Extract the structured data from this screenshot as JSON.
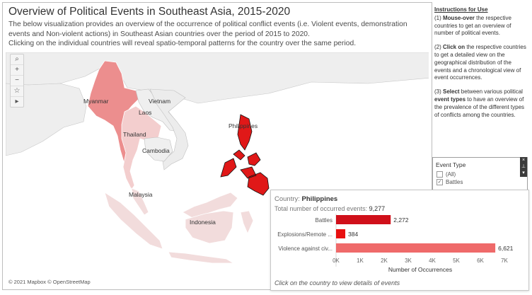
{
  "header": {
    "title": "Overview of Political Events in Southeast Asia, 2015-2020",
    "desc_line1": "The below visualization provides an overview of the occurrence of political conflict events (i.e. Violent events, demonstration",
    "desc_line2": "events and Non-violent actions) in Southeast Asian countries over the period of 2015 to 2020.",
    "desc_line3": "Clicking on the individual countries will reveal spatio-temporal patterns for the country  over the same period."
  },
  "map": {
    "labels": {
      "myanmar": "Myanmar",
      "laos": "Laos",
      "vietnam": "Vietnam",
      "thailand": "Thailand",
      "cambodia": "Cambodia",
      "philippines": "Philippines",
      "malaysia": "Malaysia",
      "indonesia": "Indonesia"
    },
    "tools": {
      "search": "⌕",
      "zoom_in": "+",
      "zoom_out": "−",
      "pin": "☆",
      "expand": "▸"
    },
    "attribution": "© 2021 Mapbox © OpenStreetMap"
  },
  "instructions": {
    "heading": "Instructions for Use",
    "step1_prefix": "(1) ",
    "step1_bold": "Mouse-over",
    "step1_rest": " the respective countries to get an overview of number of political events.",
    "step2_prefix": "(2) ",
    "step2_bold": "Click on",
    "step2_rest": " the respective countries to get a detailed view on the geographical distribution of the events and a chronological view of event occurrences.",
    "step3_prefix": "(3) ",
    "step3_bold1": "Select",
    "step3_mid": " between various political ",
    "step3_bold2": "event types",
    "step3_rest": " to have an overview of the prevalence of the different types of conflicts among the countries."
  },
  "filter": {
    "title": "Event Type",
    "options": [
      {
        "label": "(All)",
        "checked": false
      },
      {
        "label": "Battles",
        "checked": true
      }
    ],
    "controls": {
      "close": "×",
      "pin": "⊥",
      "menu": "▾"
    }
  },
  "tooltip": {
    "country_label": "Country: ",
    "country": "Philippines",
    "total_label": "Total number of occurred events: ",
    "total": "9,277",
    "click_hint": "Click  on the country to view details of events"
  },
  "colors": {
    "bar_battles": "#d0101a",
    "bar_explosions": "#e81010",
    "bar_violence": "#ef6a6a",
    "map_high": "#e23a3a"
  },
  "chart_data": {
    "type": "bar",
    "orientation": "horizontal",
    "categories": [
      "Battles",
      "Explosions/Remote ...",
      "Violence against civ..."
    ],
    "values": [
      2272,
      384,
      6621
    ],
    "value_labels": [
      "2,272",
      "384",
      "6,621"
    ],
    "xlabel": "Number of Occurrences",
    "xlim": [
      0,
      7000
    ],
    "ticks": [
      "0K",
      "1K",
      "2K",
      "3K",
      "4K",
      "5K",
      "6K",
      "7K"
    ],
    "tick_values": [
      0,
      1000,
      2000,
      3000,
      4000,
      5000,
      6000,
      7000
    ]
  }
}
